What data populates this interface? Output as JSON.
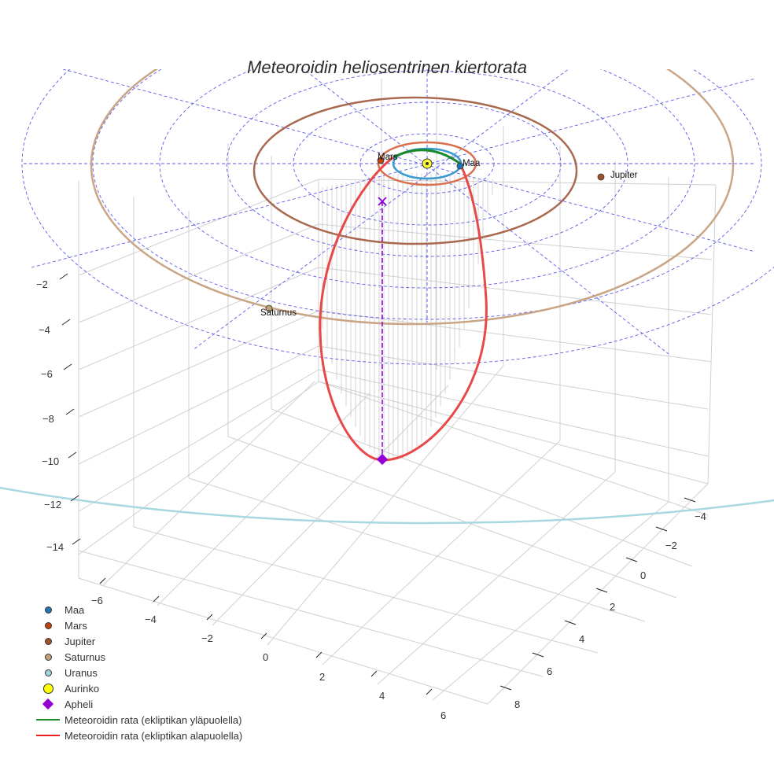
{
  "title": "Meteoroidin heliosentrinen kiertorata",
  "chart_data": {
    "type": "scatter3d",
    "title": "Meteoroidin heliosentrinen kiertorata",
    "axes": {
      "x": {
        "ticks": [
          -6,
          -4,
          -2,
          0,
          2,
          4,
          6
        ],
        "range": [
          -7,
          7
        ]
      },
      "y": {
        "ticks": [
          -4,
          -2,
          0,
          2,
          4,
          6,
          8
        ],
        "range": [
          -5,
          9
        ]
      },
      "z": {
        "ticks": [
          -2,
          -4,
          -6,
          -8,
          -10,
          -12,
          -14
        ],
        "range": [
          -15,
          0
        ]
      }
    },
    "ecliptic_grid": {
      "style": "dashed",
      "color": "#5b5be8",
      "rings_au": [
        1,
        1.5,
        2.5,
        5,
        7.5,
        10,
        12.5
      ]
    },
    "orbits": [
      {
        "name": "Maa",
        "radius_au": 1.0,
        "color": "#3a9ad0"
      },
      {
        "name": "Mars",
        "radius_au": 1.52,
        "color": "#d9704e"
      },
      {
        "name": "Jupiter",
        "radius_au": 5.2,
        "color": "#a9694e"
      },
      {
        "name": "Saturnus",
        "radius_au": 9.58,
        "color": "#c9a585"
      },
      {
        "name": "Uranus",
        "radius_au": 19.2,
        "color": "#a8d8e0"
      }
    ],
    "meteoroid": {
      "above_ecliptic_color": "#1a8a2a",
      "below_ecliptic_color": "#e84040",
      "aphelion_z": -10.2,
      "aphelion_color": "#8a00d4"
    },
    "legend_position": "bottom-left"
  },
  "axis_labels": {
    "z": [
      "−2",
      "−4",
      "−6",
      "−8",
      "−10",
      "−12",
      "−14"
    ],
    "x": [
      "−6",
      "−4",
      "−2",
      "0",
      "2",
      "4",
      "6"
    ],
    "y": [
      "−4",
      "−2",
      "0",
      "2",
      "4",
      "6",
      "8"
    ]
  },
  "planet_labels": {
    "maa": "Maa",
    "mars": "Mars",
    "jupiter": "Jupiter",
    "saturnus": "Saturnus"
  },
  "legend": {
    "items": [
      {
        "label": "Maa",
        "color": "#1f77b4",
        "symbol": "dot"
      },
      {
        "label": "Mars",
        "color": "#c1440e",
        "symbol": "dot"
      },
      {
        "label": "Jupiter",
        "color": "#a0522d",
        "symbol": "dot"
      },
      {
        "label": "Saturnus",
        "color": "#c2a07a",
        "symbol": "dot"
      },
      {
        "label": "Uranus",
        "color": "#9fd3e0",
        "symbol": "dot"
      },
      {
        "label": "Aurinko",
        "color": "#ffff00",
        "symbol": "big-dot"
      },
      {
        "label": "Apheli",
        "color": "#9400d3",
        "symbol": "diamond"
      },
      {
        "label": "Meteoroidin rata (ekliptikan yläpuolella)",
        "color": "#1a8a2a",
        "symbol": "line"
      },
      {
        "label": "Meteoroidin rata (ekliptikan alapuolella)",
        "color": "#e82020",
        "symbol": "line"
      }
    ]
  }
}
